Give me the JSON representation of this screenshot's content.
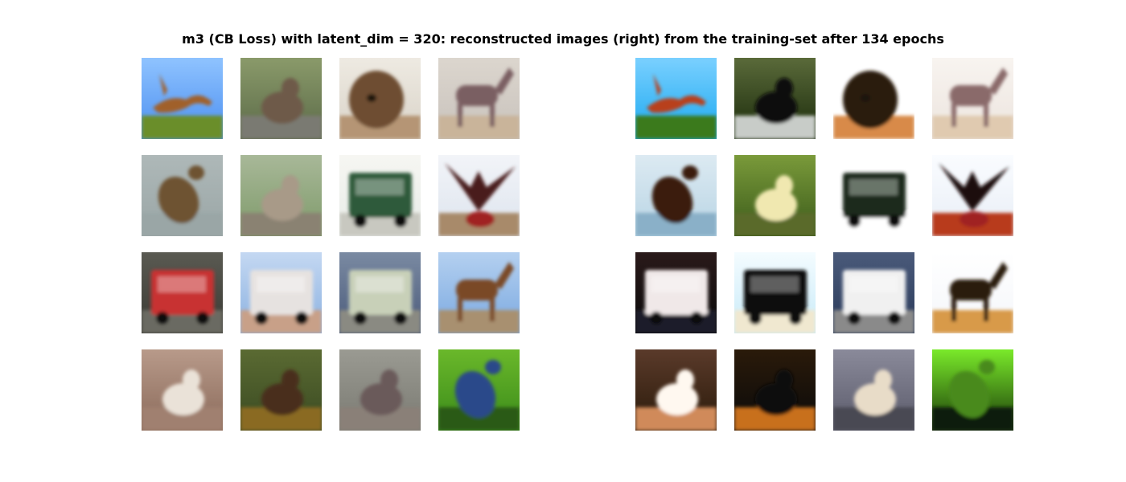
{
  "title": "m3 (CB Loss) with latent_dim = 320: reconstructed images (right) from the training-set after 134 epochs",
  "originals": [
    {
      "subject": "deer",
      "bg": "#4a8ef0",
      "bg2": "#8fc3ff",
      "ground": "#6b8e2a",
      "fg": "#a0602a",
      "shape": "leap"
    },
    {
      "subject": "deer",
      "bg": "#5b6a48",
      "bg2": "#8a9a6a",
      "ground": "#7a7a72",
      "fg": "#6e5a48",
      "shape": "sit"
    },
    {
      "subject": "dog",
      "bg": "#d9d3c8",
      "bg2": "#eeeae2",
      "ground": "#b59575",
      "fg": "#6e4e32",
      "shape": "head"
    },
    {
      "subject": "horse",
      "bg": "#c8c2bc",
      "bg2": "#dcd6ce",
      "ground": "#c9b49a",
      "fg": "#7a5e62",
      "shape": "horse"
    },
    {
      "subject": "bird",
      "bg": "#9aa6a6",
      "bg2": "#aeb8b8",
      "ground": "#9aa6a6",
      "fg": "#6e5232",
      "shape": "bird"
    },
    {
      "subject": "deer",
      "bg": "#7e9a6a",
      "bg2": "#a8b898",
      "ground": "#8a8272",
      "fg": "#a89a88",
      "shape": "sit"
    },
    {
      "subject": "truck",
      "bg": "#e8ece8",
      "bg2": "#f6f6f2",
      "ground": "#c8c8c0",
      "fg": "#2e5a3a",
      "shape": "truck"
    },
    {
      "subject": "bird",
      "bg": "#dde4ee",
      "bg2": "#f2f4f8",
      "ground": "#a88a6a",
      "fg": "#4a1e1e",
      "shape": "wings"
    },
    {
      "subject": "truck",
      "bg": "#3a3a34",
      "bg2": "#5a5a52",
      "ground": "#6a6a62",
      "fg": "#c83232",
      "shape": "truck"
    },
    {
      "subject": "truck",
      "bg": "#8ab0e0",
      "bg2": "#c4d8f2",
      "ground": "#c8a088",
      "fg": "#e6e2e0",
      "shape": "truck"
    },
    {
      "subject": "truck",
      "bg": "#4a5a7a",
      "bg2": "#7a8aa2",
      "ground": "#8a8a82",
      "fg": "#c8d0b8",
      "shape": "truck"
    },
    {
      "subject": "horse",
      "bg": "#7aa8e0",
      "bg2": "#b4d0f0",
      "ground": "#a89070",
      "fg": "#7a4a28",
      "shape": "horse"
    },
    {
      "subject": "cat",
      "bg": "#8a6a5a",
      "bg2": "#b89a8a",
      "ground": "#a08070",
      "fg": "#eae2d8",
      "shape": "sit"
    },
    {
      "subject": "deer",
      "bg": "#3a4a22",
      "bg2": "#5a6a32",
      "ground": "#8a6a22",
      "fg": "#4a2e1a",
      "shape": "sit"
    },
    {
      "subject": "deer",
      "bg": "#7a7a72",
      "bg2": "#9a9a92",
      "ground": "#8a8078",
      "fg": "#6a5a5a",
      "shape": "sit"
    },
    {
      "subject": "bird",
      "bg": "#3a8a1a",
      "bg2": "#6ab82a",
      "ground": "#2a5a12",
      "fg": "#2a4a8a",
      "shape": "bird"
    }
  ],
  "reconstructions": [
    {
      "bg": "#1aa8f0",
      "bg2": "#7ad0ff",
      "ground": "#3a7a1a",
      "fg": "#b8401a",
      "shape": "leap"
    },
    {
      "bg": "#1a2a0a",
      "bg2": "#5a6a3a",
      "ground": "#c8ccc8",
      "fg": "#0a0a0a",
      "shape": "sit"
    },
    {
      "bg": "#ffffff",
      "bg2": "#ffffff",
      "ground": "#d88a4a",
      "fg": "#2a1a0a",
      "shape": "head"
    },
    {
      "bg": "#ece4de",
      "bg2": "#f8f4f0",
      "ground": "#e0cab0",
      "fg": "#8a6a6a",
      "shape": "horse"
    },
    {
      "bg": "#b8d4e4",
      "bg2": "#dceaf2",
      "ground": "#8ab0c8",
      "fg": "#3a1e0a",
      "shape": "bird"
    },
    {
      "bg": "#3a5a1a",
      "bg2": "#7a9a3a",
      "ground": "#5a6a2a",
      "fg": "#f0e8b0",
      "shape": "sit"
    },
    {
      "bg": "#ffffff",
      "bg2": "#ffffff",
      "ground": "#ffffff",
      "fg": "#1a2a1a",
      "shape": "truck"
    },
    {
      "bg": "#e8eef6",
      "bg2": "#fafcff",
      "ground": "#b83a1a",
      "fg": "#1a0a0a",
      "shape": "wings"
    },
    {
      "bg": "#0a0a0a",
      "bg2": "#2a1a1a",
      "ground": "#1a1a2a",
      "fg": "#f0e8e8",
      "shape": "truck"
    },
    {
      "bg": "#c8eaf8",
      "bg2": "#f4fcff",
      "ground": "#f0e8d0",
      "fg": "#0a0a0a",
      "shape": "truck"
    },
    {
      "bg": "#2a3a5a",
      "bg2": "#4a5a7a",
      "ground": "#8a8a8a",
      "fg": "#f0f0f0",
      "shape": "truck"
    },
    {
      "bg": "#f4f6fa",
      "bg2": "#ffffff",
      "ground": "#d89a4a",
      "fg": "#2a1a0a",
      "shape": "horse"
    },
    {
      "bg": "#2a1a0a",
      "bg2": "#5a3a2a",
      "ground": "#d08a5a",
      "fg": "#fff8f0",
      "shape": "sit"
    },
    {
      "bg": "#0a0a0a",
      "bg2": "#2a1a0a",
      "ground": "#c8701a",
      "fg": "#0a0a0a",
      "shape": "sit"
    },
    {
      "bg": "#5a5a6a",
      "bg2": "#8a8a9a",
      "ground": "#4a4a52",
      "fg": "#e8dcc8",
      "shape": "sit"
    },
    {
      "bg": "#1a3a0a",
      "bg2": "#7aea2a",
      "ground": "#0a1a0a",
      "fg": "#4a8a1a",
      "shape": "bird"
    }
  ]
}
